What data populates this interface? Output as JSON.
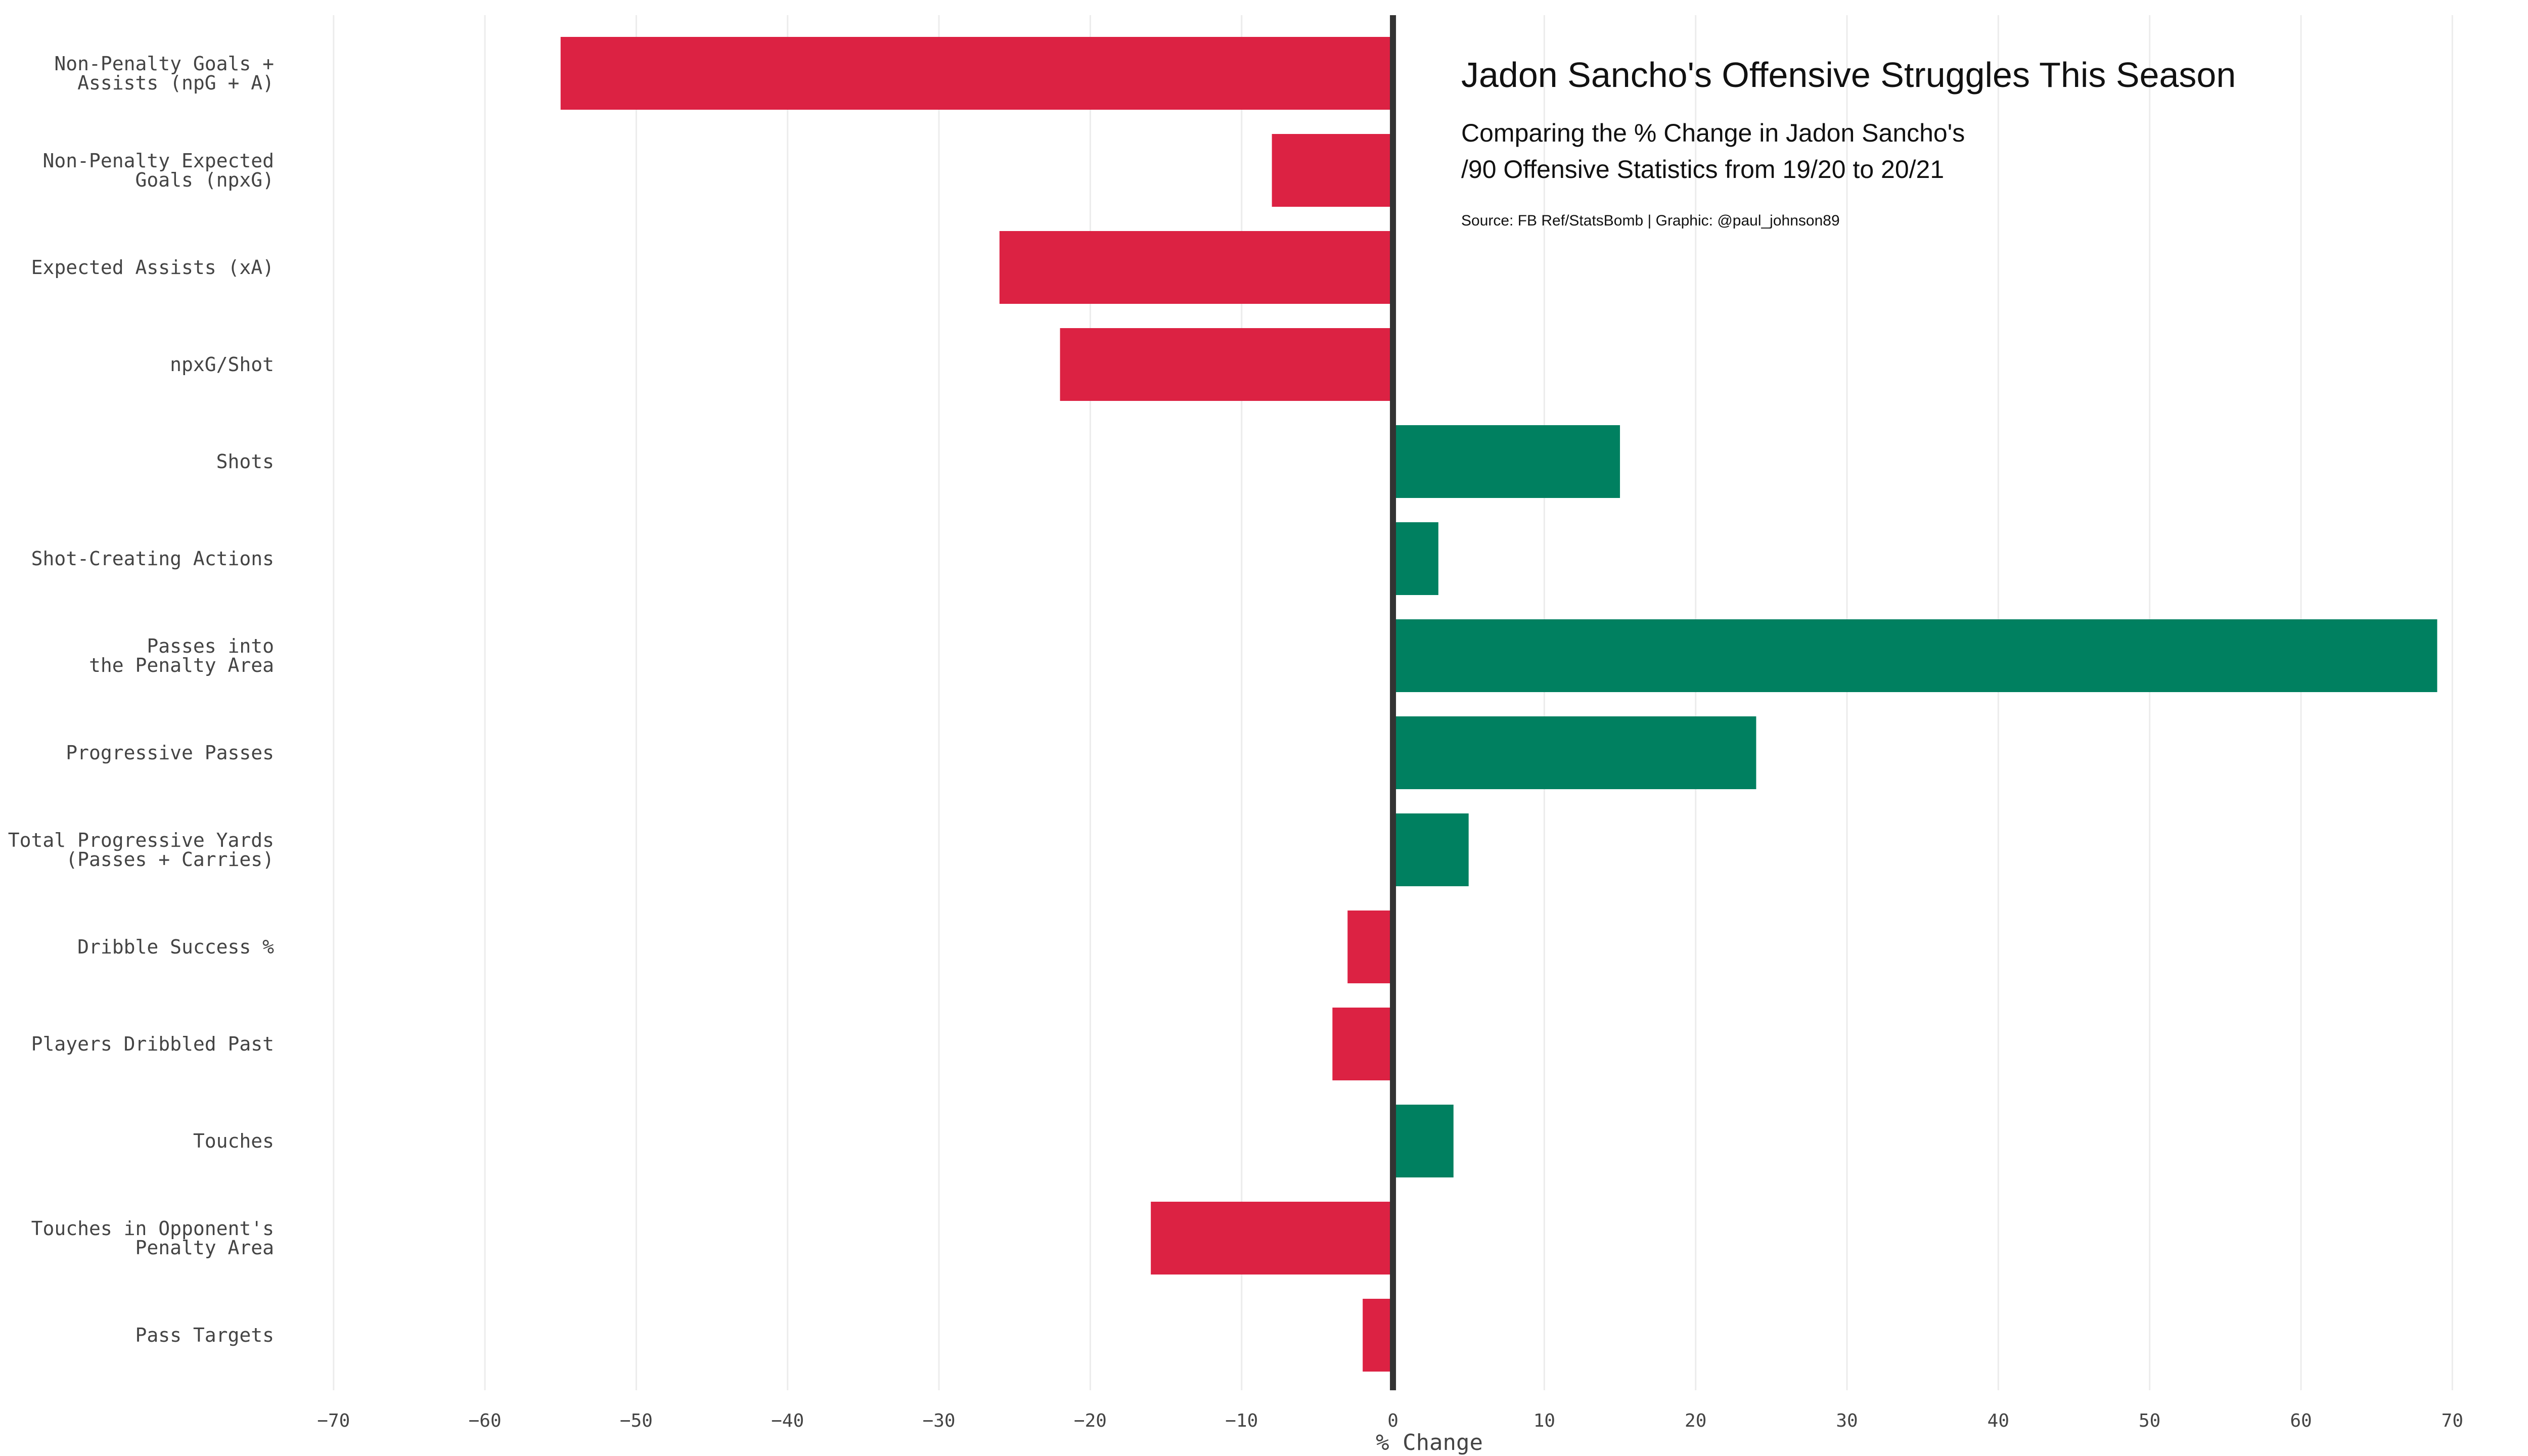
{
  "chart_data": {
    "type": "bar",
    "orientation": "horizontal",
    "title": "Jadon Sancho's Offensive Struggles This Season",
    "subtitle_lines": [
      "Comparing the % Change in Jadon Sancho's",
      "/90 Offensive Statistics from 19/20 to 20/21"
    ],
    "source": "Source: FB Ref/StatsBomb | Graphic: @paul_johnson89",
    "xlabel": "% Change",
    "ylabel": "",
    "xlim": [
      -73,
      75
    ],
    "xticks": [
      -70,
      -60,
      -50,
      -40,
      -30,
      -20,
      -10,
      0,
      10,
      20,
      30,
      40,
      50,
      60,
      70
    ],
    "grid": true,
    "legend": "none",
    "colors": {
      "negative": "#dc2243",
      "positive": "#008060",
      "zero_line": "#333333"
    },
    "categories": [
      [
        "Non-Penalty Goals +",
        "Assists (npG + A)"
      ],
      [
        "Non-Penalty Expected",
        "Goals (npxG)"
      ],
      [
        "Expected Assists (xA)"
      ],
      [
        "npxG/Shot"
      ],
      [
        "Shots"
      ],
      [
        "Shot-Creating Actions"
      ],
      [
        "Passes into",
        "the Penalty Area"
      ],
      [
        "Progressive Passes"
      ],
      [
        "Total Progressive Yards",
        "(Passes + Carries)"
      ],
      [
        "Dribble Success %"
      ],
      [
        "Players Dribbled Past"
      ],
      [
        "Touches"
      ],
      [
        "Touches in Opponent's",
        "Penalty Area"
      ],
      [
        "Pass Targets"
      ]
    ],
    "values": [
      -55,
      -8,
      -26,
      -22,
      15,
      3,
      69,
      24,
      5,
      -3,
      -4,
      4,
      -16,
      -2
    ]
  }
}
